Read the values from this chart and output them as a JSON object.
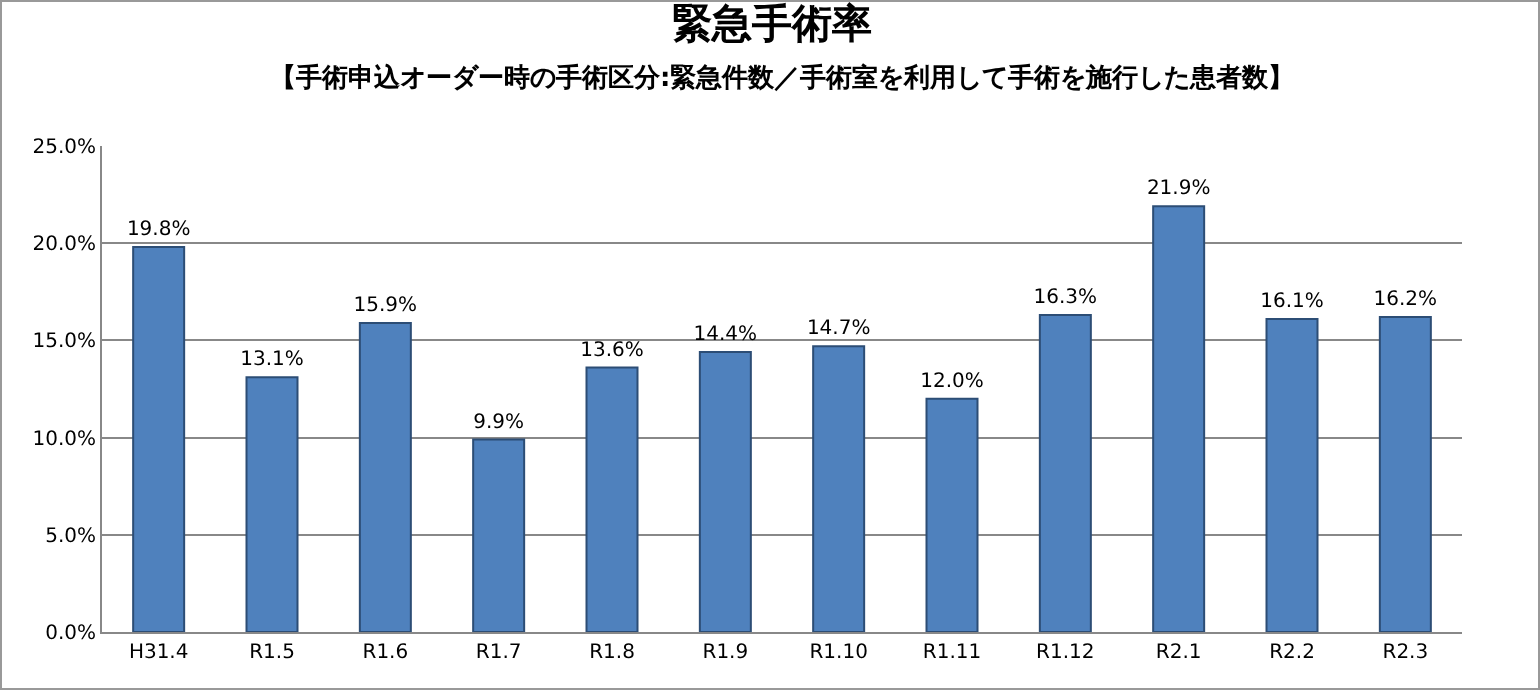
{
  "chart_data": {
    "type": "bar",
    "title": "緊急手術率",
    "subtitle": "【手術申込オーダー時の手術区分:緊急件数／手術室を利用して手術を施行した患者数】",
    "categories": [
      "H31.4",
      "R1.5",
      "R1.6",
      "R1.7",
      "R1.8",
      "R1.9",
      "R1.10",
      "R1.11",
      "R1.12",
      "R2.1",
      "R2.2",
      "R2.3"
    ],
    "values": [
      19.8,
      13.1,
      15.9,
      9.9,
      13.6,
      14.4,
      14.7,
      12.0,
      16.3,
      21.9,
      16.1,
      16.2
    ],
    "value_labels": [
      "19.8%",
      "13.1%",
      "15.9%",
      "9.9%",
      "13.6%",
      "14.4%",
      "14.7%",
      "12.0%",
      "16.3%",
      "21.9%",
      "16.1%",
      "16.2%"
    ],
    "color": "#4f81bd",
    "ylim": [
      0,
      25
    ],
    "yticks": [
      {
        "value": 0,
        "label": "0.0%"
      },
      {
        "value": 5,
        "label": "5.0%"
      },
      {
        "value": 10,
        "label": "10.0%"
      },
      {
        "value": 15,
        "label": "15.0%"
      },
      {
        "value": 20,
        "label": "20.0%"
      },
      {
        "value": 25,
        "label": "25.0%"
      }
    ],
    "grid": "y"
  }
}
